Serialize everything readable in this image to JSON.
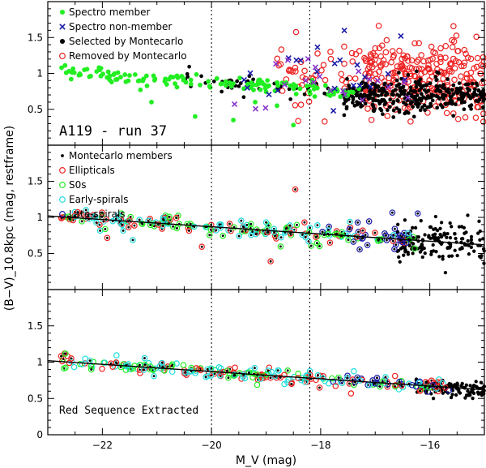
{
  "chart_data": {
    "type": "scatter",
    "xlabel": "M_V (mag)",
    "ylabel": "(B−V)_10.8kpc (mag, restframe)",
    "xlim": [
      -23,
      -15
    ],
    "ylim": [
      0,
      2
    ],
    "xticks": [
      -22,
      -20,
      -18,
      -16
    ],
    "yticks": [
      0.5,
      1,
      1.5
    ],
    "vlines": [
      -20,
      -18.2
    ],
    "colors": {
      "green": "#22ee22",
      "blue": "#1a1aaa",
      "purple": "#8833cc",
      "red": "#ee2222",
      "cyan": "#22dddd",
      "black": "#000000"
    },
    "panels": [
      {
        "annotation": "A119 - run 37",
        "legend": [
          {
            "label": "Spectro member",
            "marker": "dot",
            "color": "green"
          },
          {
            "label": "Spectro non-member",
            "marker": "x",
            "color": "blue"
          },
          {
            "label": "Selected by Montecarlo",
            "marker": "dot",
            "color": "black"
          },
          {
            "label": "Removed by Montecarlo",
            "marker": "ring",
            "color": "red"
          }
        ],
        "fit_line": false
      },
      {
        "annotation": "",
        "legend": [
          {
            "label": "Montecarlo members",
            "marker": "smalldot",
            "color": "black"
          },
          {
            "label": "Ellipticals",
            "marker": "ring",
            "color": "red"
          },
          {
            "label": "S0s",
            "marker": "ring",
            "color": "green"
          },
          {
            "label": "Early-spirals",
            "marker": "ring",
            "color": "cyan"
          },
          {
            "label": "Late-spirals",
            "marker": "ring",
            "color": "blue"
          }
        ],
        "fit_line": true
      },
      {
        "annotation": "Red Sequence Extracted",
        "legend": [],
        "fit_line": true
      }
    ],
    "red_sequence_fit": {
      "x": [
        -23,
        -15
      ],
      "y": [
        1.02,
        0.62
      ]
    }
  }
}
